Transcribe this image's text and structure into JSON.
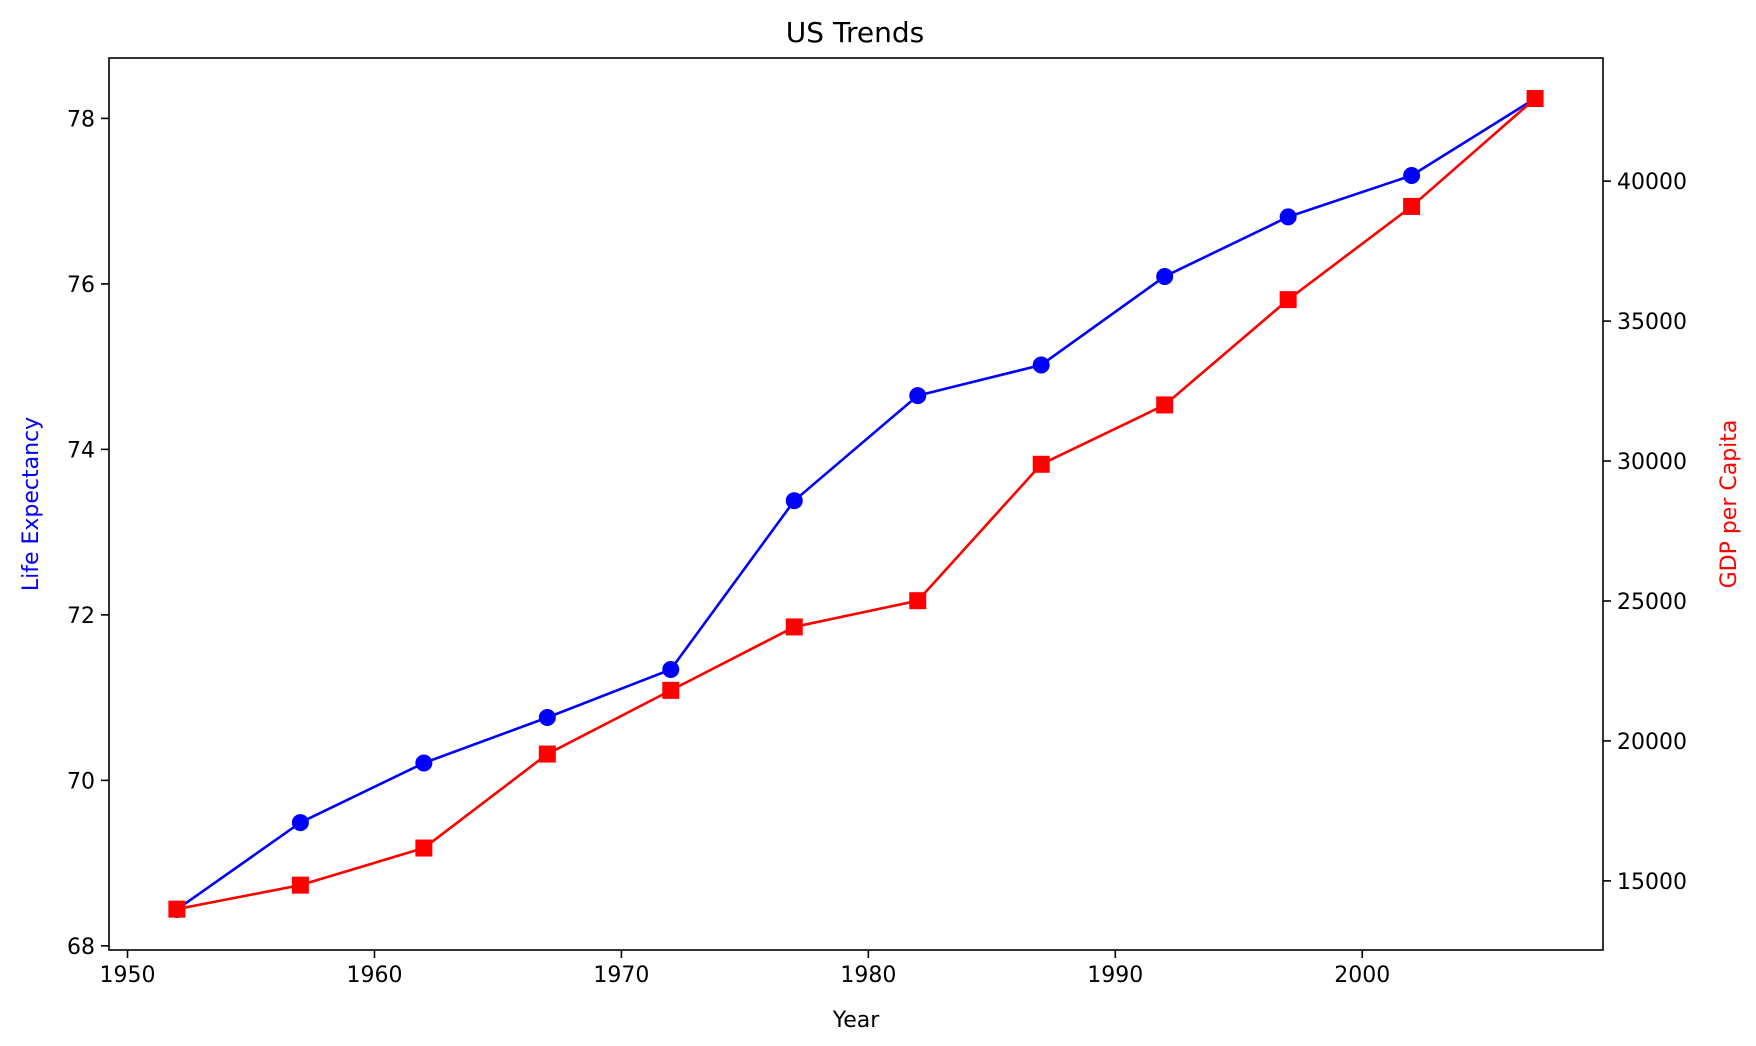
{
  "chart_data": {
    "type": "line",
    "title": "US Trends",
    "xlabel": "Year",
    "ylabel_left": "Life Expectancy",
    "ylabel_right": "GDP per Capita",
    "xlim": [
      1949.25,
      2009.75
    ],
    "ylim_left": [
      67.95,
      78.73
    ],
    "ylim_right": [
      12530,
      44400
    ],
    "x_ticks": [
      1950,
      1960,
      1970,
      1980,
      1990,
      2000
    ],
    "y_left_ticks": [
      68,
      70,
      72,
      74,
      76,
      78
    ],
    "y_right_ticks": [
      15000,
      20000,
      25000,
      30000,
      35000,
      40000
    ],
    "grid": false,
    "x": [
      1952,
      1957,
      1962,
      1967,
      1972,
      1977,
      1982,
      1987,
      1992,
      1997,
      2002,
      2007
    ],
    "series": [
      {
        "axis": "left",
        "color": "#0000ff",
        "marker": "circle",
        "values": [
          68.44,
          69.49,
          70.21,
          70.76,
          71.34,
          73.38,
          74.65,
          75.02,
          76.09,
          76.81,
          77.31,
          78.24
        ]
      },
      {
        "axis": "right",
        "color": "#ff0000",
        "marker": "square",
        "values": [
          13990,
          14847,
          16173,
          19531,
          21806,
          24073,
          25010,
          29884,
          32004,
          35767,
          39097,
          42952
        ]
      }
    ]
  }
}
